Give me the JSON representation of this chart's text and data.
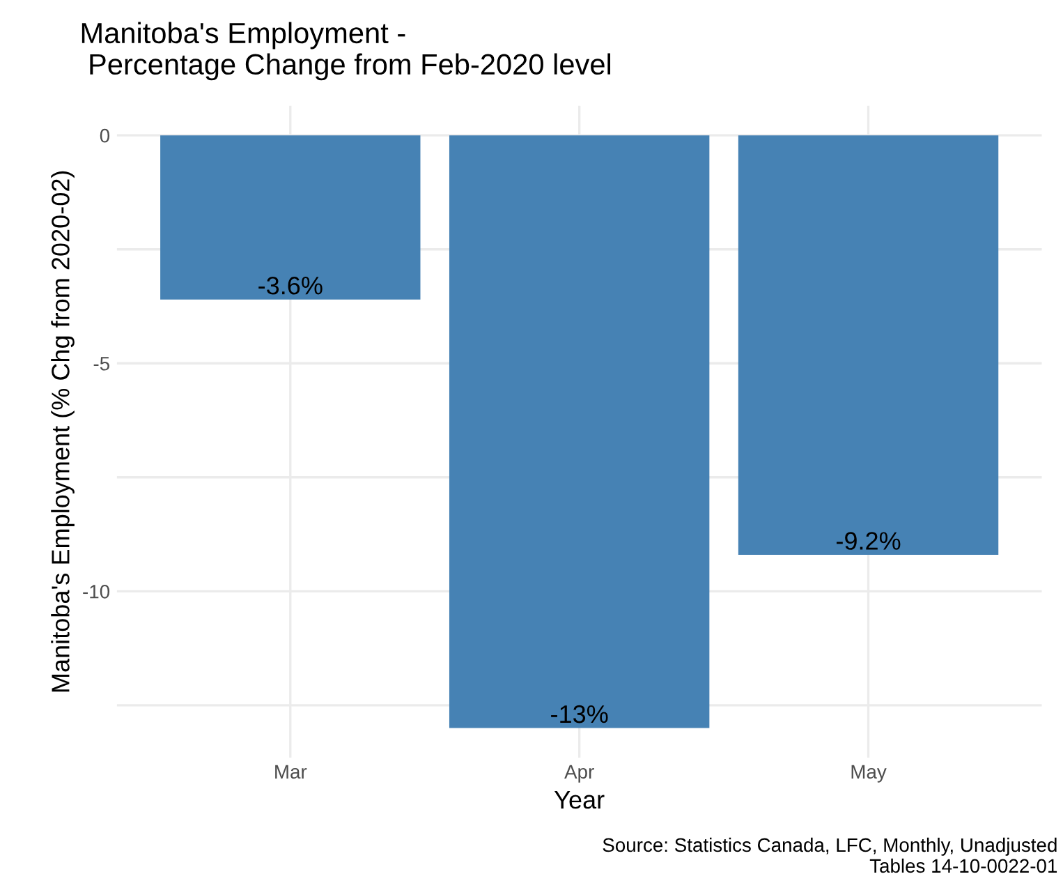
{
  "chart_data": {
    "type": "bar",
    "title": "Manitoba's Employment -\n Percentage Change from Feb-2020 level",
    "xlabel": "Year",
    "ylabel": "Manitoba's Employment (% Chg from 2020-02)",
    "categories": [
      "Mar",
      "Apr",
      "May"
    ],
    "series": [
      {
        "color": "#4682b4",
        "values": [
          -3.6,
          -13,
          -9.2
        ]
      }
    ],
    "value_labels": [
      "-3.6%",
      "-13%",
      "-9.2%"
    ],
    "ylim": [
      -13.65,
      0.65
    ],
    "yticks": [
      0,
      {
        "value": -2.5,
        "label": null
      },
      -5,
      {
        "value": -7.5,
        "label": null
      },
      -10,
      {
        "value": -12.5,
        "label": null
      }
    ],
    "grid": true,
    "annotations": [
      "Source: Statistics Canada, LFC, Monthly, Unadjusted\nTables 14-10-0022-01"
    ]
  }
}
